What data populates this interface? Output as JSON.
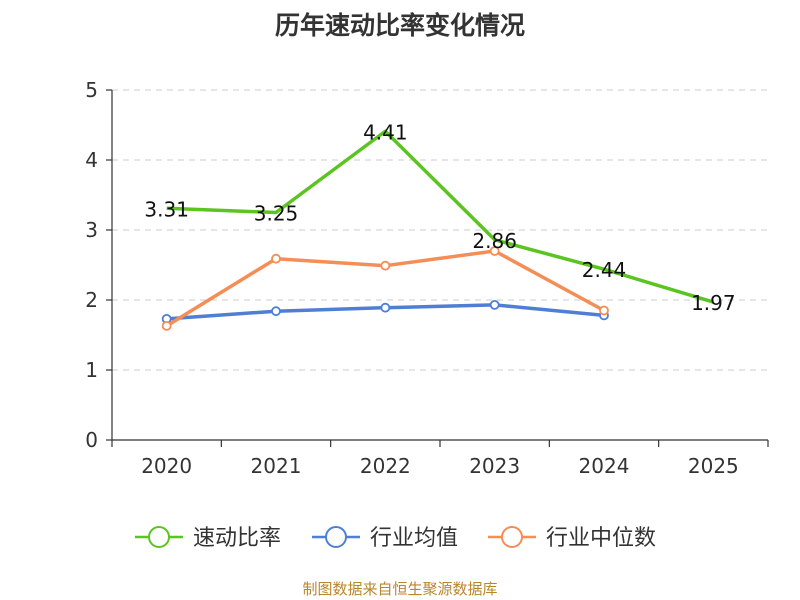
{
  "title": "历年速动比率变化情况",
  "source": "制图数据来自恒生聚源数据库",
  "colors": {
    "axis": "#333333",
    "grid": "#cccccc"
  },
  "chart_data": {
    "type": "line",
    "title": "历年速动比率变化情况",
    "categories": [
      "2020",
      "2021",
      "2022",
      "2023",
      "2024",
      "2025"
    ],
    "ylim": [
      0,
      5
    ],
    "yticks": [
      0,
      1,
      2,
      3,
      4,
      5
    ],
    "grid": true,
    "legend_position": "bottom",
    "series": [
      {
        "name": "速动比率",
        "color": "#5cc421",
        "values": [
          3.31,
          3.25,
          4.41,
          2.86,
          2.44,
          1.97
        ],
        "labels": [
          "3.31",
          "3.25",
          "4.41",
          "2.86",
          "2.44",
          "1.97"
        ]
      },
      {
        "name": "行业均值",
        "color": "#4e7fd4",
        "values": [
          1.73,
          1.84,
          1.89,
          1.93,
          1.78,
          null
        ]
      },
      {
        "name": "行业中位数",
        "color": "#f58d57",
        "values": [
          1.63,
          2.59,
          2.49,
          2.7,
          1.85,
          null
        ]
      }
    ]
  }
}
